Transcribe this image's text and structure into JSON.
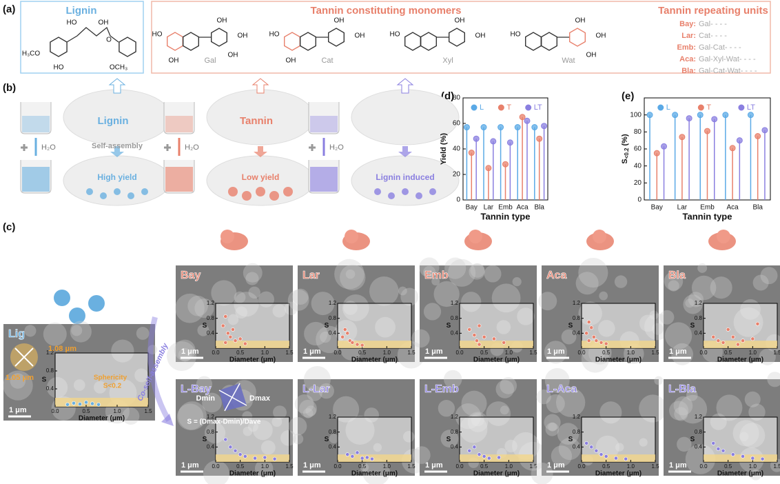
{
  "labels": {
    "a": "(a)",
    "b": "(b)",
    "c": "(c)",
    "d": "(d)",
    "e": "(e)"
  },
  "a": {
    "lignin_title": "Lignin",
    "lignin_atoms": [
      "HO",
      "OH",
      "H₃CO",
      "HO",
      "O",
      "OCH₃"
    ],
    "monomers_title": "Tannin constituting monomers",
    "monomers": [
      {
        "name": "Gal",
        "atoms": [
          "HO",
          "OH",
          "OH",
          "OH",
          "OH"
        ]
      },
      {
        "name": "Cat",
        "atoms": [
          "HO",
          "OH",
          "OH",
          "OH"
        ]
      },
      {
        "name": "Xyl",
        "atoms": [
          "HO",
          "OH",
          "OH"
        ]
      },
      {
        "name": "Wat",
        "atoms": [
          "HO",
          "OH",
          "OH",
          "OH"
        ]
      }
    ],
    "units_title": "Tannin repeating units",
    "units": [
      {
        "name": "Bay:",
        "seq": "Gal- - - -"
      },
      {
        "name": "Lar:",
        "seq": "Cat- - - -"
      },
      {
        "name": "Emb:",
        "seq": "Gal-Cat- - - -"
      },
      {
        "name": "Aca:",
        "seq": "Gal-Xyl-Wat- - - -"
      },
      {
        "name": "Bla:",
        "seq": "Gal-Cat-Wat- - - -"
      }
    ]
  },
  "b": {
    "groups": [
      {
        "label": "Lignin",
        "outcome": "High yield"
      },
      {
        "label": "Tannin",
        "outcome": "Low yield"
      },
      {
        "outcome": "Lignin induced"
      }
    ],
    "water": "H₂O",
    "process": "Self-assembly"
  },
  "chart_data": [
    {
      "type": "lollipop",
      "categories": [
        "Bay",
        "Lar",
        "Emb",
        "Aca",
        "Bla"
      ],
      "xlabel": "Tannin type",
      "ylabel": "Yield (%)",
      "ylim": [
        0,
        80
      ],
      "yticks": [
        0,
        20,
        40,
        60,
        80
      ],
      "series": [
        {
          "name": "L",
          "color": "#5aa9e6",
          "values": [
            57,
            57,
            57,
            57,
            57
          ]
        },
        {
          "name": "T",
          "color": "#e8806b",
          "values": [
            37,
            25,
            28,
            65,
            48
          ]
        },
        {
          "name": "LT",
          "color": "#8a7fe0",
          "values": [
            48,
            46,
            45,
            62,
            58
          ]
        }
      ]
    },
    {
      "type": "lollipop",
      "categories": [
        "Bay",
        "Lar",
        "Emb",
        "Aca",
        "Bla"
      ],
      "xlabel": "Tannin type",
      "ylabel": "S",
      "ylabel_sub": "<0.2",
      "ylabel_unit": "(%)",
      "ylim": [
        0,
        120
      ],
      "yticks": [
        0,
        20,
        40,
        60,
        80,
        100
      ],
      "series": [
        {
          "name": "L",
          "color": "#5aa9e6",
          "values": [
            100,
            100,
            100,
            100,
            100
          ]
        },
        {
          "name": "T",
          "color": "#e8806b",
          "values": [
            55,
            74,
            81,
            61,
            75
          ]
        },
        {
          "name": "LT",
          "color": "#8a7fe0",
          "values": [
            63,
            96,
            95,
            70,
            82
          ]
        }
      ]
    }
  ],
  "c": {
    "process": "Co-self-assembly",
    "scale": "1 μm",
    "inset": {
      "xlabel": "Diameter (μm)",
      "ylabel": "S",
      "xlim": [
        0,
        1.5
      ],
      "ylim": [
        0,
        1.2
      ],
      "xticks": [
        {
          "value": 0,
          "label": "0.0"
        },
        0.5,
        {
          "value": 1,
          "label": "1.0"
        },
        1.5
      ],
      "yticks": [
        0.4,
        0.8,
        1.2
      ]
    },
    "lig": {
      "label": "Lig",
      "d1": "1.08 μm",
      "d2": "1.05 μm",
      "sphericity": "Sphericity",
      "threshold": "S<0.2",
      "points": [
        [
          0.2,
          0.05
        ],
        [
          0.3,
          0.08
        ],
        [
          0.4,
          0.06
        ],
        [
          0.5,
          0.1
        ],
        [
          0.6,
          0.07
        ],
        [
          0.7,
          0.05
        ]
      ]
    },
    "formula": {
      "dmin": "Dmin",
      "dmax": "Dmax",
      "text": "S = (Dmax-Dmin)/Dave"
    },
    "tannin": [
      {
        "label": "Bay",
        "points": [
          [
            0.15,
            0.6
          ],
          [
            0.2,
            0.85
          ],
          [
            0.25,
            0.4
          ],
          [
            0.3,
            0.3
          ],
          [
            0.35,
            0.5
          ],
          [
            0.4,
            0.2
          ],
          [
            0.5,
            0.25
          ],
          [
            0.6,
            0.12
          ],
          [
            0.2,
            0.15
          ]
        ]
      },
      {
        "label": "Lar",
        "points": [
          [
            0.1,
            0.3
          ],
          [
            0.15,
            0.5
          ],
          [
            0.2,
            0.4
          ],
          [
            0.25,
            0.2
          ],
          [
            0.3,
            0.15
          ],
          [
            0.4,
            0.1
          ],
          [
            0.5,
            0.08
          ]
        ]
      },
      {
        "label": "Emb",
        "points": [
          [
            0.2,
            0.5
          ],
          [
            0.3,
            0.35
          ],
          [
            0.35,
            0.2
          ],
          [
            0.4,
            0.6
          ],
          [
            0.5,
            0.3
          ],
          [
            0.7,
            0.25
          ],
          [
            0.9,
            0.15
          ],
          [
            0.4,
            0.1
          ]
        ]
      },
      {
        "label": "Aca",
        "points": [
          [
            0.1,
            0.4
          ],
          [
            0.15,
            0.7
          ],
          [
            0.2,
            0.55
          ],
          [
            0.25,
            0.3
          ],
          [
            0.3,
            0.2
          ],
          [
            0.4,
            0.15
          ],
          [
            0.5,
            0.12
          ],
          [
            0.15,
            0.2
          ]
        ]
      },
      {
        "label": "Bla",
        "points": [
          [
            0.2,
            0.3
          ],
          [
            0.3,
            0.2
          ],
          [
            0.5,
            0.5
          ],
          [
            0.6,
            0.3
          ],
          [
            0.8,
            0.2
          ],
          [
            1.0,
            0.25
          ],
          [
            1.1,
            0.65
          ],
          [
            0.4,
            0.15
          ],
          [
            0.7,
            0.1
          ]
        ]
      }
    ],
    "lt": [
      {
        "label": "L-Bay",
        "points": [
          [
            0.2,
            0.6
          ],
          [
            0.3,
            0.4
          ],
          [
            0.4,
            0.3
          ],
          [
            0.5,
            0.2
          ],
          [
            0.6,
            0.15
          ],
          [
            0.8,
            0.1
          ],
          [
            1.0,
            0.12
          ],
          [
            1.2,
            0.08
          ]
        ]
      },
      {
        "label": "L-Lar",
        "points": [
          [
            0.2,
            0.2
          ],
          [
            0.3,
            0.15
          ],
          [
            0.4,
            0.25
          ],
          [
            0.5,
            0.1
          ],
          [
            0.6,
            0.12
          ],
          [
            0.7,
            0.08
          ]
        ]
      },
      {
        "label": "L-Emb",
        "points": [
          [
            0.2,
            0.3
          ],
          [
            0.3,
            0.4
          ],
          [
            0.4,
            0.2
          ],
          [
            0.5,
            0.15
          ],
          [
            0.6,
            0.1
          ],
          [
            0.8,
            0.12
          ]
        ]
      },
      {
        "label": "L-Aca",
        "points": [
          [
            0.1,
            0.5
          ],
          [
            0.2,
            0.4
          ],
          [
            0.3,
            0.3
          ],
          [
            0.4,
            0.2
          ],
          [
            0.5,
            0.15
          ],
          [
            0.7,
            0.1
          ],
          [
            0.9,
            0.08
          ]
        ]
      },
      {
        "label": "L-Bla",
        "points": [
          [
            0.2,
            0.5
          ],
          [
            0.3,
            0.35
          ],
          [
            0.4,
            0.3
          ],
          [
            0.6,
            0.2
          ],
          [
            0.8,
            0.15
          ],
          [
            1.0,
            0.1
          ],
          [
            1.2,
            0.08
          ]
        ]
      }
    ]
  }
}
